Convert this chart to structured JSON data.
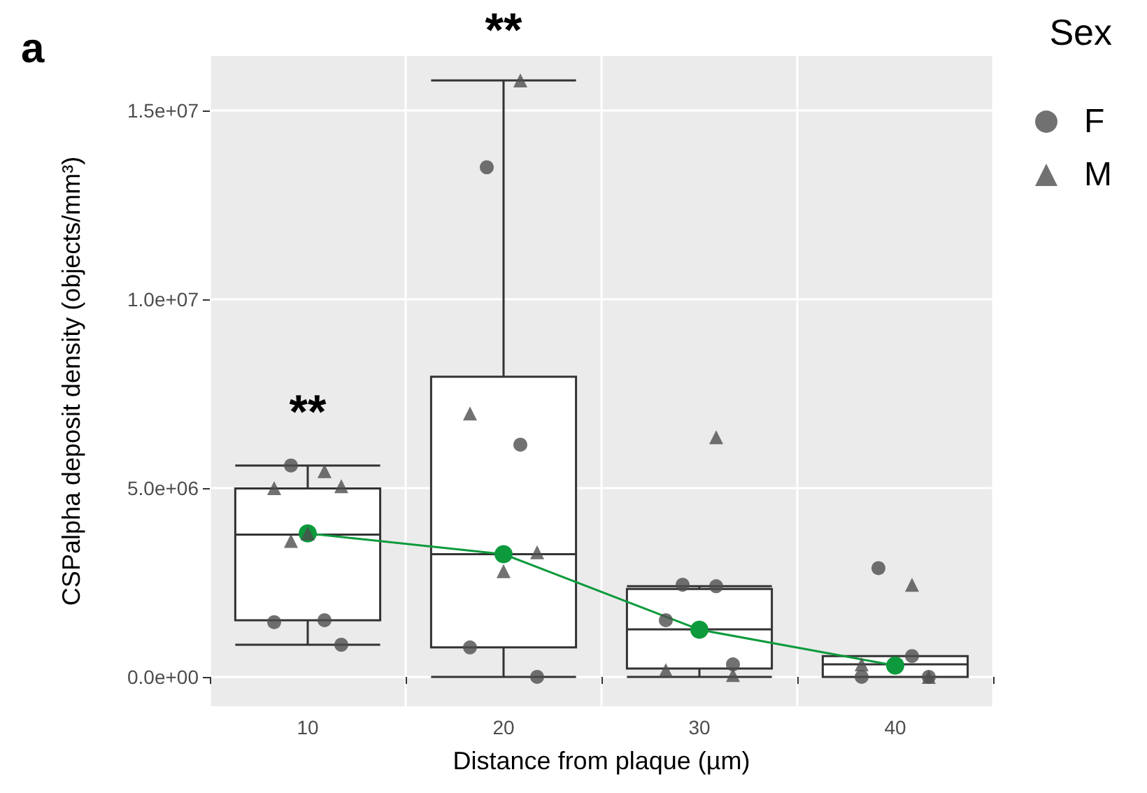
{
  "chart_data": {
    "type": "box",
    "xlabel": "Distance from plaque (µm)",
    "ylabel": "CSPalpha deposit density (objects/mm³)",
    "legend_title": "Sex",
    "categories": [
      "10",
      "20",
      "30",
      "40"
    ],
    "boxes": [
      {
        "low": 850000,
        "q1": 1500000,
        "median": 3770000,
        "q3": 4990000,
        "high": 5600000
      },
      {
        "low": 0,
        "q1": 780000,
        "median": 3250000,
        "q3": 7950000,
        "high": 15800000
      },
      {
        "low": 0,
        "q1": 220000,
        "median": 1260000,
        "q3": 2330000,
        "high": 2400000
      },
      {
        "low": 0,
        "q1": 0,
        "median": 330000,
        "q3": 550000,
        "high": 550000
      }
    ],
    "series": [
      {
        "name": "F",
        "type": "scatter",
        "marker": "circle",
        "color": "#4d4d4d",
        "x": [
          "10",
          "10",
          "10",
          "10",
          "20",
          "20",
          "20",
          "20",
          "30",
          "30",
          "30",
          "30",
          "40",
          "40",
          "40",
          "40"
        ],
        "values": [
          5600000,
          1500000,
          1450000,
          850000,
          13500000,
          6150000,
          780000,
          0,
          2440000,
          2400000,
          1500000,
          330000,
          2880000,
          550000,
          0,
          0
        ]
      },
      {
        "name": "M",
        "type": "scatter",
        "marker": "triangle",
        "color": "#4d4d4d",
        "x": [
          "10",
          "10",
          "10",
          "10",
          "10",
          "20",
          "20",
          "20",
          "20",
          "30",
          "30",
          "30",
          "40",
          "40",
          "40"
        ],
        "values": [
          5450000,
          5000000,
          5050000,
          3800000,
          3600000,
          15800000,
          6980000,
          3300000,
          2800000,
          6350000,
          180000,
          50000,
          2440000,
          330000,
          0
        ]
      },
      {
        "type": "line",
        "marker": "circle",
        "color": "#0c9a3c",
        "x": [
          "10",
          "20",
          "30",
          "40"
        ],
        "values": [
          3800000,
          3250000,
          1250000,
          300000
        ]
      }
    ],
    "ylim": [
      -780000,
      16450000
    ],
    "yticks": [
      {
        "value": 0,
        "label": "0.0e+00"
      },
      {
        "value": 5000000,
        "label": "5.0e+06"
      },
      {
        "value": 10000000,
        "label": "1.0e+07"
      },
      {
        "value": 15000000,
        "label": "1.5e+07"
      }
    ],
    "grid": true,
    "legend": "right",
    "annotations": [
      "a",
      "**",
      "**"
    ]
  }
}
